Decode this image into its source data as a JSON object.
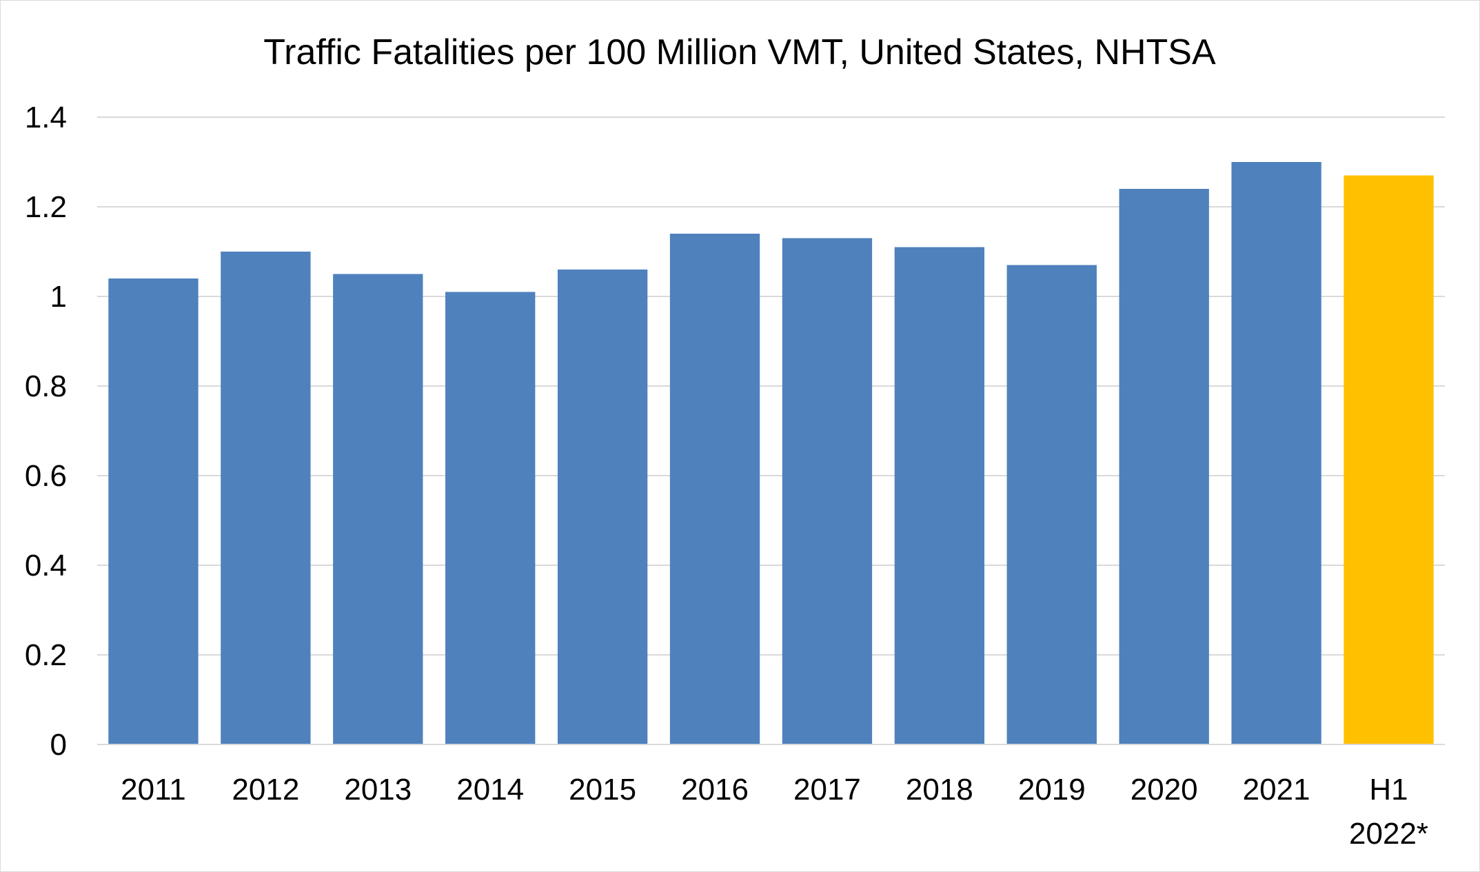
{
  "chart_data": {
    "type": "bar",
    "title": "Traffic Fatalities per 100 Million VMT, United States, NHTSA",
    "xlabel": "",
    "ylabel": "",
    "categories": [
      [
        "2011"
      ],
      [
        "2012"
      ],
      [
        "2013"
      ],
      [
        "2014"
      ],
      [
        "2015"
      ],
      [
        "2016"
      ],
      [
        "2017"
      ],
      [
        "2018"
      ],
      [
        "2019"
      ],
      [
        "2020"
      ],
      [
        "2021"
      ],
      [
        "H1",
        "2022*"
      ]
    ],
    "values": [
      1.04,
      1.1,
      1.05,
      1.01,
      1.06,
      1.14,
      1.13,
      1.11,
      1.07,
      1.24,
      1.3,
      1.27
    ],
    "bar_colors": [
      "#4f81bd",
      "#4f81bd",
      "#4f81bd",
      "#4f81bd",
      "#4f81bd",
      "#4f81bd",
      "#4f81bd",
      "#4f81bd",
      "#4f81bd",
      "#4f81bd",
      "#4f81bd",
      "#ffc000"
    ],
    "ylim": [
      0,
      1.4
    ],
    "yticks": [
      0,
      0.2,
      0.4,
      0.6,
      0.8,
      1,
      1.2,
      1.4
    ],
    "ytick_labels": [
      "0",
      "0.2",
      "0.4",
      "0.6",
      "0.8",
      "1",
      "1.2",
      "1.4"
    ],
    "grid": true,
    "gridline_color": "#d9d9d9",
    "axis_line_color": "#d9d9d9",
    "legend": "none"
  }
}
